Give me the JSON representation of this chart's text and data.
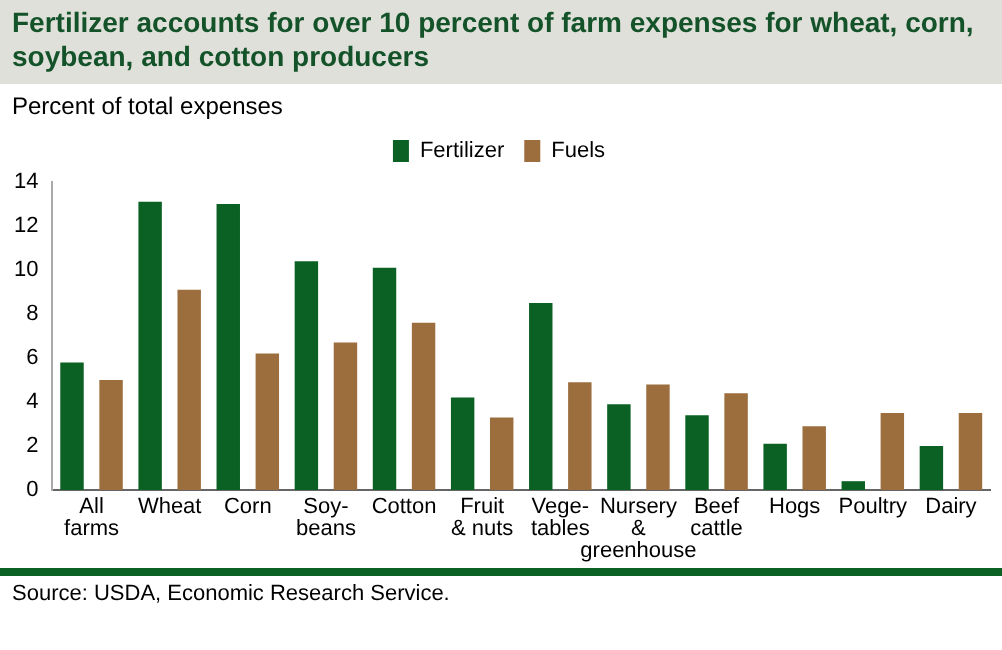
{
  "chart_data": {
    "type": "bar",
    "title": "Fertilizer accounts for over 10 percent of farm expenses for wheat, corn, soybean, and cotton producers",
    "ylabel": "Percent of total expenses",
    "categories": [
      "All\nfarms",
      "Wheat",
      "Corn",
      "Soy-\nbeans",
      "Cotton",
      "Fruit\n& nuts",
      "Vege-\ntables",
      "Nursery\n&\ngreenhouse",
      "Beef\ncattle",
      "Hogs",
      "Poultry",
      "Dairy"
    ],
    "series": [
      {
        "name": "Fertilizer",
        "color": "#0b6124",
        "values": [
          5.8,
          13.1,
          13.0,
          10.4,
          10.1,
          4.2,
          8.5,
          3.9,
          3.4,
          2.1,
          0.4,
          2.0
        ]
      },
      {
        "name": "Fuels",
        "color": "#9c6d3d",
        "values": [
          5.0,
          9.1,
          6.2,
          6.7,
          7.6,
          3.3,
          4.9,
          4.8,
          4.4,
          2.9,
          3.5,
          3.5
        ]
      }
    ],
    "ylim": [
      0,
      14
    ],
    "yticks": [
      0,
      2,
      4,
      6,
      8,
      10,
      12,
      14
    ],
    "grid": false,
    "legend": "top",
    "annotations": [
      "Source: USDA, Economic Research Service."
    ]
  }
}
